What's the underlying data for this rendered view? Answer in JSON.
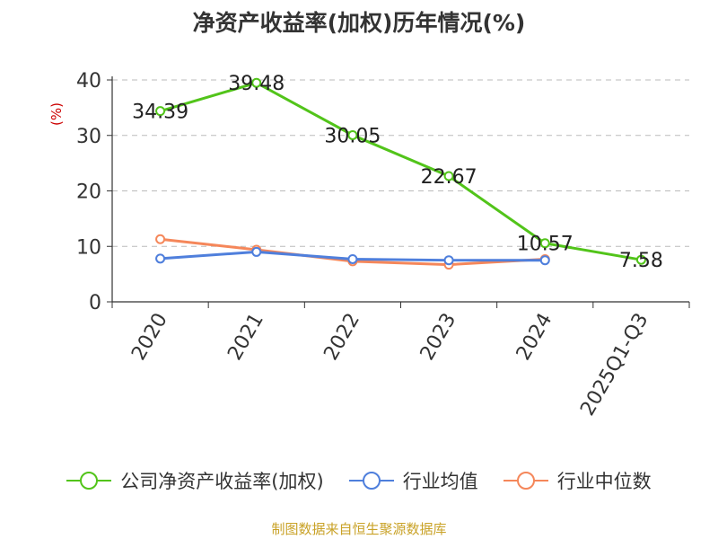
{
  "chart_data": {
    "type": "line",
    "title": "净资产收益率(加权)历年情况(%)",
    "ylabel": "(%)",
    "categories": [
      "2020",
      "2021",
      "2022",
      "2023",
      "2024",
      "2025Q1-Q3"
    ],
    "ylim": [
      0,
      40
    ],
    "yticks": [
      0,
      10,
      20,
      30,
      40
    ],
    "grid": true,
    "legend_position": "bottom",
    "series": [
      {
        "name": "公司净资产收益率(加权)",
        "color": "#52c41a",
        "values": [
          34.39,
          39.48,
          30.05,
          22.67,
          10.57,
          7.58
        ],
        "labels": [
          "34.39",
          "39.48",
          "30.05",
          "22.67",
          "10.57",
          "7.58"
        ]
      },
      {
        "name": "行业均值",
        "color": "#4f7fdc",
        "values": [
          7.8,
          9.0,
          7.7,
          7.5,
          7.5,
          null
        ]
      },
      {
        "name": "行业中位数",
        "color": "#f5875a",
        "values": [
          11.3,
          9.4,
          7.3,
          6.7,
          7.7,
          null
        ]
      }
    ]
  },
  "source": "制图数据来自恒生聚源数据库",
  "colors": {
    "axis": "#333333",
    "grid": "#bbbbbb",
    "ylabel": "#cc0000"
  }
}
